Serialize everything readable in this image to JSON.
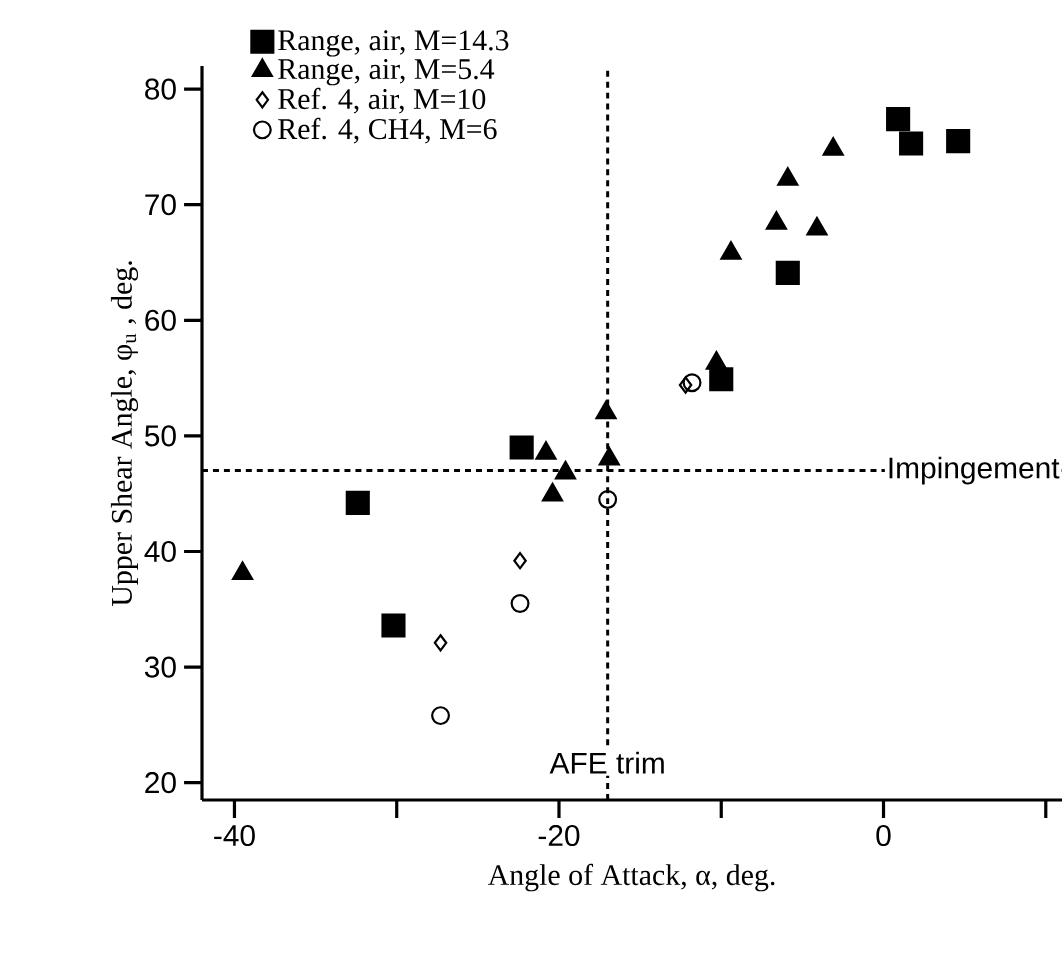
{
  "chart_data": {
    "type": "scatter",
    "xlabel": "Angle of Attack, α, deg.",
    "ylabel": "Upper Shear Angle, φ$_{u}$ , deg.",
    "xlim": [
      -42,
      11
    ],
    "ylim": [
      18.5,
      82
    ],
    "xticks": [
      -40,
      {
        "value": -30,
        "label": null
      },
      -20,
      {
        "value": -10,
        "label": null
      },
      0,
      {
        "value": 10,
        "label": null
      }
    ],
    "yticks": [
      20,
      30,
      40,
      50,
      60,
      70,
      80
    ],
    "grid": false,
    "legend": "top left",
    "series": [
      {
        "name": "Range, air, M=14.3",
        "color": "#000000",
        "marker": "square",
        "x": [
          0.9,
          1.7,
          4.6,
          -5.9,
          -10,
          -22.3,
          -32.4,
          -30.2
        ],
        "values": [
          77.4,
          75.3,
          75.5,
          64.1,
          54.9,
          49,
          44.2,
          33.6
        ]
      },
      {
        "name": "Range, air, M=5.4",
        "color": "#000000",
        "marker": "triangle",
        "x": [
          -3.1,
          -5.9,
          -6.6,
          -4.1,
          -9.4,
          -10.3,
          -17.1,
          -16.9,
          -20.8,
          -19.6,
          -20.4,
          -39.5
        ],
        "values": [
          74.8,
          72.2,
          68.4,
          67.9,
          65.8,
          56.3,
          52,
          48,
          48.5,
          46.8,
          44.9,
          38.1
        ]
      },
      {
        "name": "Ref. 4, air, M=10",
        "color": "#000000",
        "marker": "diamond",
        "x": [
          -12.2,
          -22.4,
          -27.3
        ],
        "values": [
          54.4,
          39.2,
          32.1
        ]
      },
      {
        "name": "Ref. 4, CH4, M=6",
        "color": "#000000",
        "marker": "circle",
        "x": [
          -11.8,
          -17,
          -22.4,
          -27.3
        ],
        "values": [
          54.6,
          44.5,
          35.5,
          25.8
        ]
      }
    ],
    "ref_lines": [
      {
        "axis": "y",
        "value": 47,
        "label": "Impingement",
        "line_style": "dashed",
        "color": "#000000"
      },
      {
        "axis": "x",
        "value": -17,
        "label": "AFE trim",
        "line_style": "dashed",
        "color": "#000000"
      }
    ]
  }
}
